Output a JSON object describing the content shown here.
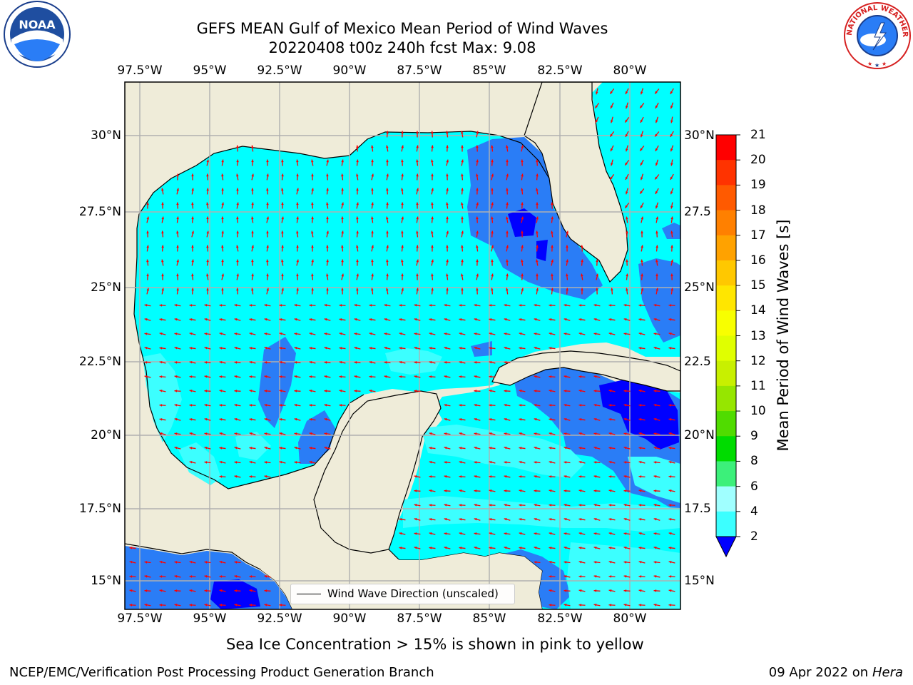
{
  "title_line1": "GEFS MEAN Gulf of Mexico Mean Period of Wind Waves",
  "title_line2": "20220408 t00z 240h fcst   Max: 9.08",
  "lon_ticks": [
    "97.5°W",
    "95°W",
    "92.5°W",
    "90°W",
    "87.5°W",
    "85°W",
    "82.5°W",
    "80°W"
  ],
  "lat_ticks_left": [
    "30°N",
    "27.5°N",
    "25°N",
    "22.5°N",
    "20°N",
    "17.5°N",
    "15°N"
  ],
  "lat_ticks_right": [
    "30°N",
    "27.5",
    "25°N",
    "22.5",
    "20°N",
    "17.5",
    "15°N"
  ],
  "colorbar": {
    "label": "Mean Period of Wind Waves [s]",
    "ticks": [
      "21",
      "20",
      "19",
      "18",
      "17",
      "16",
      "15",
      "14",
      "13",
      "12",
      "11",
      "10",
      "9",
      "8",
      "6",
      "4",
      "2"
    ],
    "colors": [
      "#ff0000",
      "#ff3300",
      "#ff5a00",
      "#ff8000",
      "#ffa200",
      "#ffc800",
      "#ffe600",
      "#f8ff00",
      "#e0ff00",
      "#c8f000",
      "#96e600",
      "#50dc00",
      "#00dc00",
      "#3cf07a",
      "#a0ffff",
      "#3cffff",
      "#00ffff",
      "#2a7df6"
    ],
    "underflow_color": "#0000ff"
  },
  "legend_label": "Wind Wave Direction (unscaled)",
  "sea_ice_note": "Sea Ice Concentration > 15% is shown in pink to yellow",
  "footer_left": "NCEP/EMC/Verification Post Processing Product Generation Branch",
  "footer_right_date": "09 Apr 2022 on",
  "footer_right_host": "Hera",
  "logos": {
    "noaa": "NOAA",
    "nws": "NATIONAL WEATHER SERVICE"
  },
  "colors": {
    "land": "#efecd9",
    "water_low": "#00ffff",
    "water_mid": "#2a7df6",
    "water_pale": "#3cffff",
    "water_deep": "#0000ff",
    "arrow": "#ff0000",
    "grid": "#b0b0b0"
  }
}
